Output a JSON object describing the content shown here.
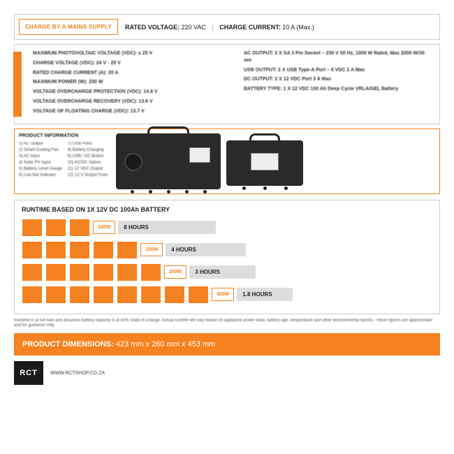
{
  "header": {
    "badge": "CHARGE BY A MAINS SUPPLY",
    "rated_label": "RATED VOLTAGE:",
    "rated_value": "220 VAC",
    "current_label": "CHARGE CURRENT:",
    "current_value": "10 A (Max.)"
  },
  "specs_left": [
    "MAXIMUM PHOTOVOLTAIC VOLTAGE (VDC): ≤ 25 V",
    "CHARGE VOLTAGE (VDC): 24 V - 25 V",
    "RATED CHARGE CURRENT (A): 20 A",
    "MAXIMUM POWER (W): 230 W",
    "VOLTAGE OVERCHARGE PROTECTION (VDC): 14.8 V",
    "VOLTAGE OVERCHARGE RECOVERY (VDC): 13.6 V",
    "VOLTAGE OF FLOATING CHARGE (VDC): 13.7 V"
  ],
  "specs_right": [
    "AC OUTPUT: 2 X SA 3 Pin Socket – 230 V 50 Hz, 1000 W Rated, Max 2000 W/30 sec",
    "USB OUTPUT: 2 X USB Type-A Port – 5 VDC 2 A Max",
    "DC OUTPUT: 2 X 12 VDC Port 3 A Max",
    "BATTERY TYPE: 1 X 12 VDC 100 Ah Deep Cycle VRLA/GEL Battery"
  ],
  "product_info": {
    "title": "PRODUCT INFORMATION",
    "col1": [
      "1) AC Output",
      "2) Smart Cooling Fan",
      "3) AC Input",
      "4) Solar PV Input",
      "5) Battery Level Gauge",
      "6) Low Bat Indicator"
    ],
    "col2": [
      "7) USB Ports",
      "8) Battery Charging",
      "9) USB / DC Button",
      "10) AC/DC Option",
      "11) 12 VDC Output",
      "12) 12 V Output Fuse"
    ]
  },
  "runtime": {
    "title": "RUNTIME BASED ON 1X 12V DC 100Ah BATTERY",
    "rows": [
      {
        "squares": 3,
        "watt": "100W",
        "hours": "8 HOURS",
        "barClass": "hours-1"
      },
      {
        "squares": 5,
        "watt": "150W",
        "hours": "4 HOURS",
        "barClass": "hours-2"
      },
      {
        "squares": 6,
        "watt": "250W",
        "hours": "3 HOURS",
        "barClass": "hours-3"
      },
      {
        "squares": 8,
        "watt": "400W",
        "hours": "1.8 HOURS",
        "barClass": "hours-4"
      }
    ]
  },
  "footnote": "Runtime is at full load and assumes battery capacity is at 80% State of Charge. Actual runtime will vary based on appliance power draw, battery age, temperature and other environmental factors. These figures are approximate and for guidance only.",
  "dimensions": {
    "label": "PRODUCT DIMENSIONS:",
    "value": "423 mm x 260 mm x 453 mm"
  },
  "footer": {
    "logo": "RCT",
    "url": "WWW.RCTSHOP.CO.ZA"
  },
  "colors": {
    "orange": "#f58220",
    "dark": "#1a1a1a",
    "grey": "#cccccc"
  }
}
